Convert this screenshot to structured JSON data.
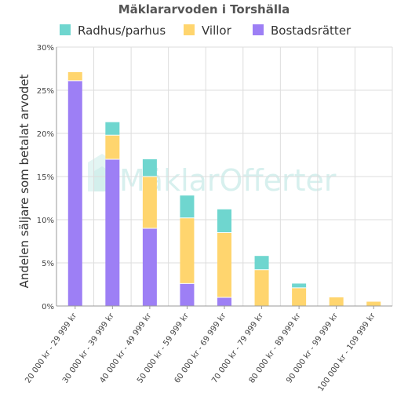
{
  "chart_data": {
    "type": "bar",
    "stacked": true,
    "title": "Mäklararvoden i Torshälla",
    "xlabel": "",
    "ylabel": "Andelen säljare som betalat arvodet",
    "ylim": [
      0,
      30
    ],
    "yticks": [
      "0%",
      "5%",
      "10%",
      "15%",
      "20%",
      "25%",
      "30%"
    ],
    "grid": true,
    "legend_position": "top",
    "categories": [
      "20 000 kr - 29 999 kr",
      "30 000 kr - 39 999 kr",
      "40 000 kr - 49 999 kr",
      "50 000 kr - 59 999 kr",
      "60 000 kr - 69 999 kr",
      "70 000 kr - 79 999 kr",
      "80 000 kr - 89 999 kr",
      "90 000 kr - 99 999 kr",
      "100 000 kr - 109 999 kr"
    ],
    "series": [
      {
        "name": "Bostadsrätter",
        "color": "#9d7ff5",
        "values": [
          26.1,
          17.0,
          9.0,
          2.6,
          1.0,
          0,
          0,
          0,
          0
        ]
      },
      {
        "name": "Villor",
        "color": "#ffd56e",
        "values": [
          1.0,
          2.8,
          6.0,
          7.6,
          7.5,
          4.2,
          2.1,
          1.0,
          0.5
        ]
      },
      {
        "name": "Radhus/parhus",
        "color": "#6fd6cf",
        "values": [
          0,
          1.5,
          2.0,
          2.6,
          2.7,
          1.6,
          0.5,
          0,
          0
        ]
      }
    ],
    "legend_order": [
      "Radhus/parhus",
      "Villor",
      "Bostadsrätter"
    ]
  },
  "watermark": {
    "text": "MäklarOfferter"
  }
}
